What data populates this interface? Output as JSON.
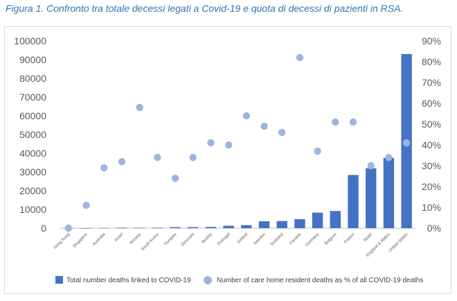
{
  "caption": "Figura 1. Confronto tra totale decessi legati a Covid-19 e quota di decessi di pazienti in RSA.",
  "colors": {
    "bar": "#4472c4",
    "dot": "#9db5de",
    "axis": "#bfbfbf",
    "text": "#595959",
    "caption": "#2e74b5"
  },
  "chart_data": {
    "type": "bar",
    "title": "",
    "categories": [
      "Hong Kong",
      "Singapore",
      "Australia",
      "Israel",
      "Norway",
      "South Korea",
      "Hungary",
      "Denmark",
      "Austria",
      "Portugal",
      "Ireland",
      "Sweden",
      "Scotland",
      "Canada",
      "Germany",
      "Belgium",
      "France",
      "Spain",
      "England & Wales",
      "United States"
    ],
    "series": [
      {
        "name": "Total number deaths linked to COVID-19",
        "type": "bar",
        "axis": "left",
        "values": [
          4,
          23,
          100,
          280,
          235,
          260,
          550,
          560,
          640,
          1300,
          1600,
          3700,
          3800,
          4800,
          8300,
          9200,
          28400,
          32000,
          37500,
          93000
        ]
      },
      {
        "name": "Number of care home resident deaths as % of all COVID-19 deaths",
        "type": "scatter",
        "axis": "right",
        "values": [
          0,
          11,
          29,
          32,
          58,
          34,
          24,
          34,
          41,
          40,
          54,
          49,
          46,
          82,
          37,
          51,
          51,
          30,
          34,
          41
        ]
      }
    ],
    "y_left": {
      "min": 0,
      "max": 100000,
      "ticks": [
        "0",
        "10000",
        "20000",
        "30000",
        "40000",
        "50000",
        "60000",
        "70000",
        "80000",
        "90000",
        "100000"
      ]
    },
    "y_right": {
      "min": 0,
      "max": 90,
      "ticks": [
        "0%",
        "10%",
        "20%",
        "30%",
        "40%",
        "50%",
        "60%",
        "70%",
        "80%",
        "90%"
      ]
    },
    "grid": false,
    "legend": "bottom"
  }
}
